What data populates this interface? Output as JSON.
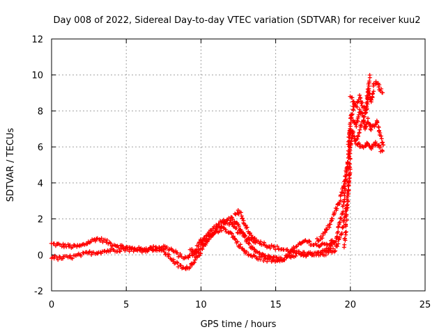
{
  "chart_data": {
    "type": "scatter",
    "title": "Day 008 of 2022, Sidereal Day-to-day VTEC variation (SDTVAR) for receiver kuu2",
    "xlabel": "GPS time / hours",
    "ylabel": "SDTVAR / TECUs",
    "xlim": [
      0,
      25
    ],
    "ylim": [
      -2,
      12
    ],
    "x_ticks": [
      0,
      5,
      10,
      15,
      20,
      25
    ],
    "y_ticks": [
      -2,
      0,
      2,
      4,
      6,
      8,
      10,
      12
    ],
    "x_tick_labels": [
      "0",
      "5",
      "10",
      "15",
      "20",
      "25"
    ],
    "y_tick_labels": [
      "-2",
      "0",
      "2",
      "4",
      "6",
      "8",
      "10",
      "12"
    ],
    "grid": true,
    "marker": "+",
    "series": [
      {
        "name": "SDTVAR",
        "color": "#ff0000",
        "tracks": [
          {
            "x": [
              0,
              0.5,
              1,
              1.5,
              2,
              2.5,
              3,
              3.5,
              4,
              4.5,
              5,
              5.5,
              6,
              6.5,
              7,
              7.5,
              8,
              8.5,
              9,
              9.5,
              10,
              10.5,
              11,
              11.5,
              12,
              12.5,
              13,
              13.5,
              14,
              14.5,
              15,
              15.5,
              16,
              16.5,
              17,
              17.5,
              18,
              18.5,
              19,
              19.5,
              19.8,
              20,
              20.3
            ],
            "y": [
              0.6,
              0.55,
              0.5,
              0.45,
              0.5,
              0.7,
              0.9,
              0.8,
              0.6,
              0.5,
              0.4,
              0.35,
              0.3,
              0.35,
              0.4,
              0.45,
              0.3,
              0.0,
              -0.2,
              0.1,
              0.8,
              1.2,
              1.6,
              1.9,
              1.7,
              1.3,
              1.0,
              0.8,
              0.7,
              0.5,
              0.4,
              0.3,
              0.2,
              0.1,
              0.0,
              0.05,
              0.1,
              0.3,
              0.8,
              2.5,
              5.0,
              7.5,
              8.5
            ]
          },
          {
            "x": [
              0,
              0.5,
              1,
              1.5,
              2,
              2.5,
              3,
              3.5,
              4,
              4.5,
              5,
              5.5,
              6,
              6.5,
              7,
              7.5,
              8,
              8.5,
              9,
              9.5,
              10,
              10.5,
              11,
              11.5,
              12,
              12.5,
              13,
              13.5,
              14,
              14.5,
              15,
              15.5,
              16,
              16.5,
              17,
              17.5,
              18,
              18.5,
              19,
              19.5,
              19.8,
              20
            ],
            "y": [
              -0.1,
              -0.2,
              -0.15,
              -0.1,
              0.0,
              0.1,
              0.15,
              0.2,
              0.25,
              0.3,
              0.3,
              0.3,
              0.25,
              0.3,
              0.35,
              0.2,
              -0.2,
              -0.6,
              -0.8,
              -0.4,
              0.2,
              0.8,
              1.3,
              1.5,
              1.2,
              0.6,
              0.1,
              -0.1,
              -0.2,
              -0.3,
              -0.3,
              -0.2,
              -0.1,
              0.0,
              0.1,
              0.0,
              0.0,
              0.1,
              0.3,
              1.5,
              3.0,
              5.0
            ]
          },
          {
            "x": [
              9.3,
              9.6,
              10,
              10.4,
              10.8,
              11.2,
              11.6,
              12,
              12.4,
              12.8,
              13.2,
              13.6,
              14,
              14.5,
              15,
              15.5,
              16,
              16.5,
              17,
              17.5,
              18,
              18.5,
              19
            ],
            "y": [
              0.3,
              0.0,
              0.5,
              1.0,
              1.2,
              1.5,
              1.8,
              2.0,
              1.8,
              1.2,
              0.6,
              0.2,
              0.0,
              -0.1,
              -0.2,
              -0.3,
              0.2,
              0.5,
              0.8,
              0.6,
              0.5,
              0.6,
              0.8
            ]
          },
          {
            "x": [
              12.3,
              12.5,
              12.7,
              13.0,
              13.4,
              13.8
            ],
            "y": [
              2.3,
              2.4,
              2.2,
              1.6,
              1.0,
              0.7
            ]
          },
          {
            "x": [
              17.8,
              18.1,
              18.4,
              18.7,
              19.0,
              19.3,
              19.6,
              19.8,
              20.0,
              20.2
            ],
            "y": [
              0.8,
              1.0,
              1.4,
              1.8,
              2.5,
              3.0,
              4.0,
              5.0,
              6.0,
              7.0
            ]
          },
          {
            "x": [
              19.9,
              20.0,
              20.2,
              20.4,
              20.6,
              20.8,
              21.0,
              21.2,
              21.4,
              21.6,
              21.8,
              22.0,
              22.2
            ],
            "y": [
              6.5,
              7.0,
              6.6,
              6.2,
              6.1,
              6.0,
              6.1,
              6.2,
              6.0,
              6.2,
              6.1,
              5.9,
              5.7
            ]
          },
          {
            "x": [
              20.0,
              20.2,
              20.4,
              20.6,
              20.8,
              21.0,
              21.2,
              21.4,
              21.6,
              21.8,
              22.0,
              22.2
            ],
            "y": [
              8.8,
              8.5,
              8.2,
              8.8,
              8.3,
              8.0,
              9.2,
              8.5,
              9.5,
              9.6,
              9.2,
              9.0
            ]
          },
          {
            "x": [
              20.0,
              20.2,
              20.4,
              20.6,
              20.8,
              21.0,
              21.2,
              21.4,
              21.6,
              21.8,
              22.0,
              22.2
            ],
            "y": [
              7.8,
              7.5,
              7.2,
              8.0,
              7.8,
              7.0,
              7.5,
              7.0,
              7.2,
              7.4,
              6.6,
              6.0
            ]
          },
          {
            "x": [
              20.3,
              20.5,
              20.7,
              20.9,
              21.1,
              21.3
            ],
            "y": [
              6.3,
              6.6,
              7.2,
              7.6,
              8.2,
              10.1
            ]
          },
          {
            "x": [
              19.6,
              19.7,
              19.8,
              19.9,
              20.0
            ],
            "y": [
              0.5,
              1.5,
              2.8,
              4.3,
              6.0
            ]
          }
        ]
      }
    ]
  }
}
